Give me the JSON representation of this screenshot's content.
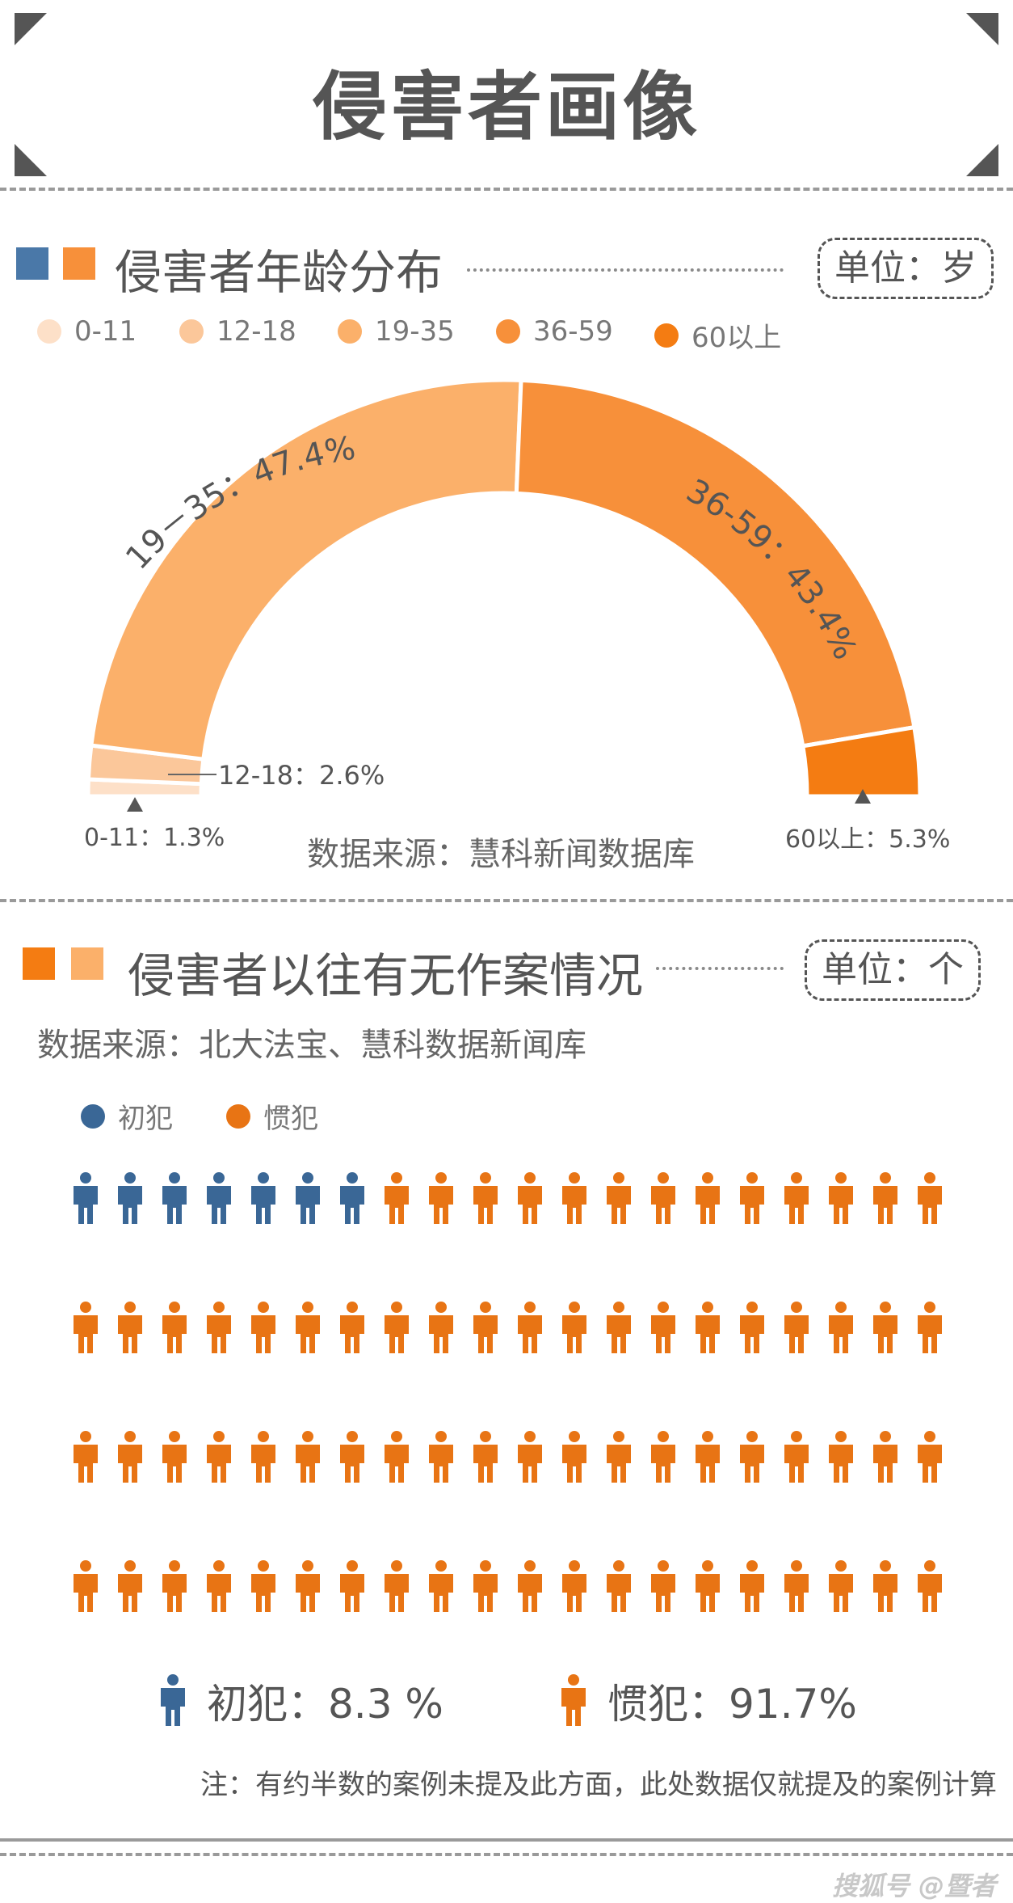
{
  "title": "侵害者画像",
  "age_section": {
    "title": "侵害者年龄分布",
    "unit": "单位：岁",
    "source": "数据来源：慧科新闻数据库",
    "legend": [
      {
        "label": "0-11",
        "color": "#fde0c8"
      },
      {
        "label": "12-18",
        "color": "#fbc79a"
      },
      {
        "label": "19-35",
        "color": "#fbb06a"
      },
      {
        "label": "36-59",
        "color": "#f7903a"
      },
      {
        "label": "60以上",
        "color": "#f47c12"
      }
    ],
    "slice_labels": {
      "s0": "0-11：1.3%",
      "s1": "12-18：2.6%",
      "s2": "19－35：47.4%",
      "s3": "36-59：43.4%",
      "s4": "60以上：5.3%"
    }
  },
  "chart_data": [
    {
      "type": "pie",
      "subtype": "semi-donut",
      "title": "侵害者年龄分布",
      "unit": "岁",
      "categories": [
        "0-11",
        "12-18",
        "19-35",
        "36-59",
        "60以上"
      ],
      "values": [
        1.3,
        2.6,
        47.4,
        43.4,
        5.3
      ],
      "value_unit": "%",
      "colors": [
        "#fde0c8",
        "#fbc79a",
        "#fbb06a",
        "#f7903a",
        "#f47c12"
      ],
      "legend_position": "top-left",
      "source": "数据来源：慧科新闻数据库"
    },
    {
      "type": "pictogram",
      "title": "侵害者以往有无作案情况",
      "unit": "个",
      "categories": [
        "初犯",
        "惯犯"
      ],
      "values": [
        8.3,
        91.7
      ],
      "value_unit": "%",
      "icon_counts": [
        7,
        73
      ],
      "colors": [
        "#3a6796",
        "#e87414"
      ],
      "legend_position": "top-left",
      "source": "数据来源：北大法宝、慧科数据新闻库"
    }
  ],
  "record_section": {
    "title": "侵害者以往有无作案情况",
    "unit": "单位：个",
    "source": "数据来源：北大法宝、慧科数据新闻库",
    "legend": [
      {
        "label": "初犯",
        "color": "#3a6796"
      },
      {
        "label": "惯犯",
        "color": "#e87414"
      }
    ],
    "summary_first": "初犯：8.3 %",
    "summary_repeat": "惯犯：91.7%",
    "note": "注：有约半数的案例未提及此方面，此处数据仅就提及的案例计算"
  },
  "watermark": "搜狐号 @暨者"
}
